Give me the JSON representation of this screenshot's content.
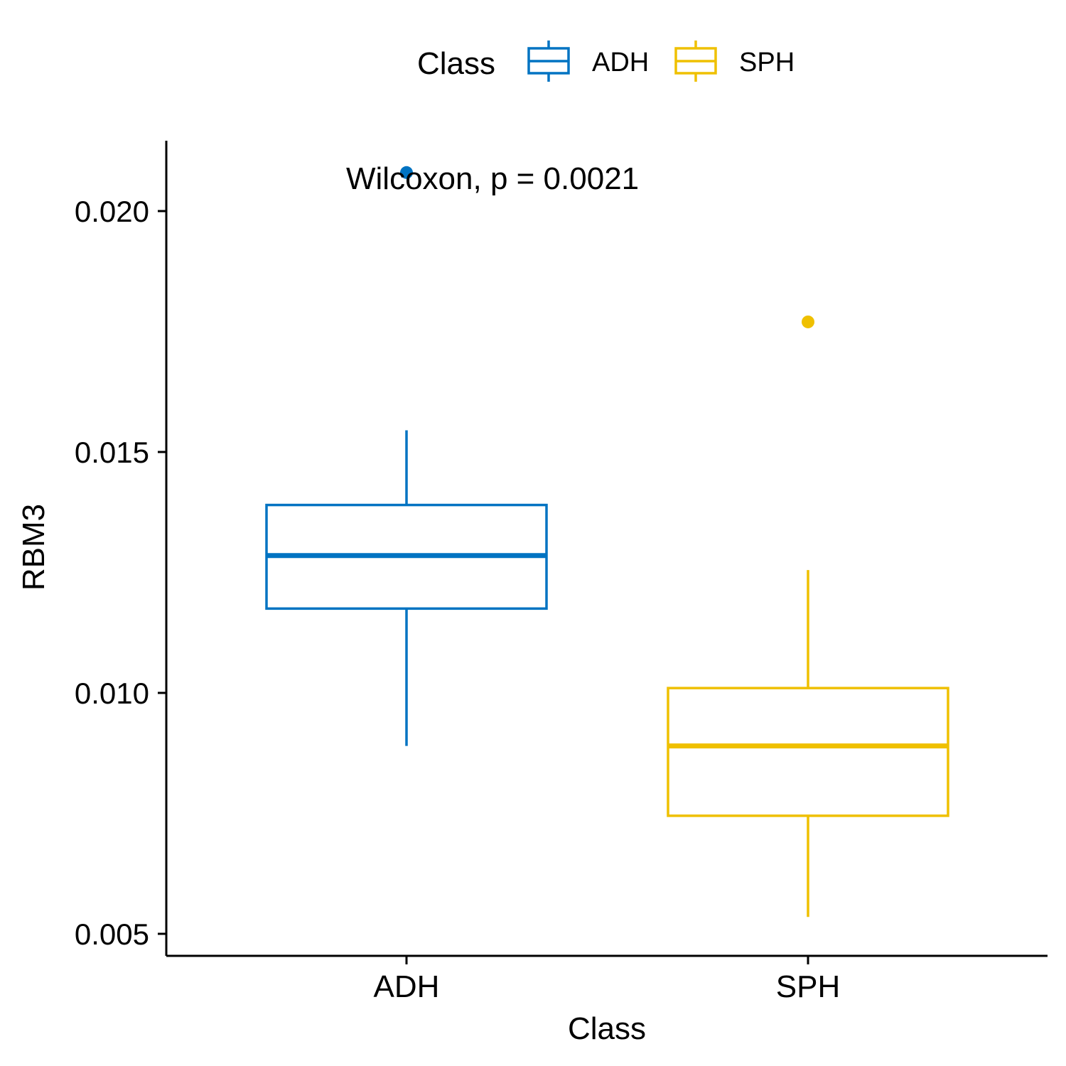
{
  "chart_data": {
    "type": "boxplot",
    "xlabel": "Class",
    "ylabel": "RBM3",
    "categories": [
      "ADH",
      "SPH"
    ],
    "yticks": [
      "0.005",
      "0.010",
      "0.015",
      "0.020"
    ],
    "ylim": [
      0.0045,
      0.0215
    ],
    "legend": {
      "title": "Class",
      "position": "top",
      "entries": [
        "ADH",
        "SPH"
      ]
    },
    "annotation": "Wilcoxon, p = 0.0021",
    "colors": {
      "ADH": "#0073C2",
      "SPH": "#EFC000"
    },
    "series": [
      {
        "category": "ADH",
        "whisker_low": 0.0089,
        "q1": 0.01175,
        "median": 0.01285,
        "q3": 0.0139,
        "whisker_high": 0.01545,
        "outliers": [
          0.0208
        ]
      },
      {
        "category": "SPH",
        "whisker_low": 0.00535,
        "q1": 0.00745,
        "median": 0.0089,
        "q3": 0.0101,
        "whisker_high": 0.01255,
        "outliers": [
          0.0177
        ]
      }
    ]
  }
}
